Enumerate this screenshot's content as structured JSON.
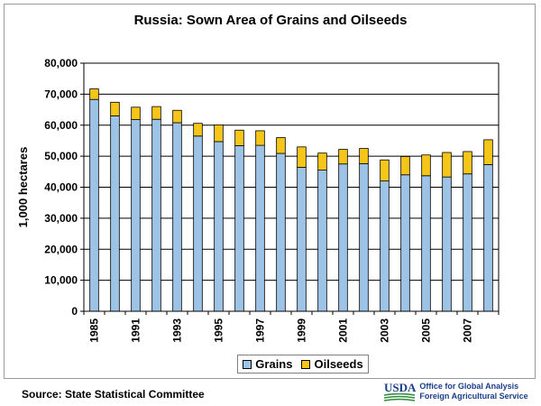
{
  "chart_data": {
    "type": "bar",
    "stacked": true,
    "title": "Russia:  Sown Area of Grains and Oilseeds",
    "ylabel": "1,000 hectares",
    "xlabel": "",
    "ylim": [
      0,
      80000
    ],
    "yticks": [
      0,
      10000,
      20000,
      30000,
      40000,
      50000,
      60000,
      70000,
      80000
    ],
    "ytick_labels": [
      "0",
      "10,000",
      "20,000",
      "30,000",
      "40,000",
      "50,000",
      "60,000",
      "70,000",
      "80,000"
    ],
    "categories": [
      "1985",
      "1990",
      "1991",
      "1992",
      "1993",
      "1994",
      "1995",
      "1996",
      "1997",
      "1998",
      "1999",
      "2000",
      "2001",
      "2002",
      "2003",
      "2004",
      "2005",
      "2006",
      "2007",
      "2008"
    ],
    "xtick_labels": [
      "1985",
      "",
      "1991",
      "",
      "1993",
      "",
      "1995",
      "",
      "1997",
      "",
      "1999",
      "",
      "2001",
      "",
      "2003",
      "",
      "2005",
      "",
      "2007",
      ""
    ],
    "series": [
      {
        "name": "Grains",
        "color": "#9dc3e6",
        "values": [
          68300,
          63000,
          61800,
          61900,
          60800,
          56500,
          54700,
          53400,
          53500,
          50900,
          46400,
          45500,
          47500,
          47600,
          42000,
          44000,
          43700,
          43300,
          44300,
          47300
        ]
      },
      {
        "name": "Oilseeds",
        "color": "#f5c518",
        "values": [
          3400,
          4400,
          4000,
          4100,
          4000,
          4100,
          5400,
          5000,
          4700,
          5100,
          6600,
          5500,
          4700,
          4900,
          6800,
          5900,
          6700,
          7900,
          7200,
          8000
        ]
      }
    ],
    "grid": true,
    "legend": "bottom"
  },
  "source": "Source:  State Statistical Committee",
  "branding": {
    "mark": "USDA",
    "line1": "Office for Global Analysis",
    "line2": "Foreign Agricultural Service"
  }
}
